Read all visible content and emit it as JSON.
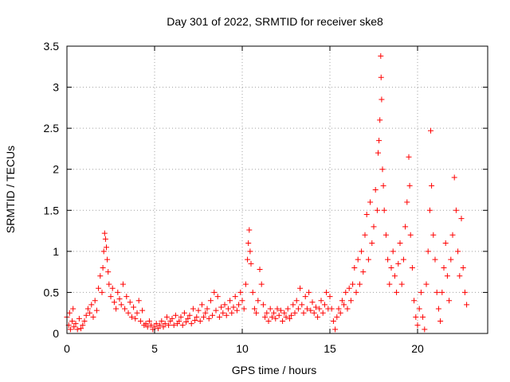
{
  "chart_data": {
    "type": "scatter",
    "title": "Day 301 of 2022, SRMTID for receiver ske8",
    "xlabel": "GPS time / hours",
    "ylabel": "SRMTID / TECUs",
    "xlim": [
      0,
      24
    ],
    "ylim": [
      0,
      3.5
    ],
    "xticks": [
      0,
      5,
      10,
      15,
      20
    ],
    "xtick_labels": [
      "0",
      "5",
      "10",
      "15",
      "20"
    ],
    "yticks": [
      0,
      0.5,
      1,
      1.5,
      2,
      2.5,
      3,
      3.5
    ],
    "ytick_labels": [
      "0",
      "0.5",
      "1",
      "1.5",
      "2",
      "2.5",
      "3",
      "3.5"
    ],
    "grid": true,
    "marker": "+",
    "color": "#ff0000",
    "series": [
      {
        "name": "SRMTID",
        "points": [
          [
            0.0,
            0.2
          ],
          [
            0.1,
            0.1
          ],
          [
            0.15,
            0.25
          ],
          [
            0.2,
            0.05
          ],
          [
            0.3,
            0.15
          ],
          [
            0.35,
            0.3
          ],
          [
            0.4,
            0.08
          ],
          [
            0.5,
            0.12
          ],
          [
            0.6,
            0.05
          ],
          [
            0.7,
            0.18
          ],
          [
            0.8,
            0.06
          ],
          [
            0.9,
            0.1
          ],
          [
            1.0,
            0.15
          ],
          [
            1.1,
            0.22
          ],
          [
            1.2,
            0.3
          ],
          [
            1.3,
            0.25
          ],
          [
            1.4,
            0.35
          ],
          [
            1.5,
            0.2
          ],
          [
            1.6,
            0.4
          ],
          [
            1.7,
            0.28
          ],
          [
            1.8,
            0.55
          ],
          [
            1.9,
            0.7
          ],
          [
            2.0,
            0.5
          ],
          [
            2.05,
            0.8
          ],
          [
            2.1,
            1.0
          ],
          [
            2.15,
            1.22
          ],
          [
            2.2,
            1.15
          ],
          [
            2.25,
            1.05
          ],
          [
            2.3,
            0.9
          ],
          [
            2.35,
            0.75
          ],
          [
            2.4,
            0.6
          ],
          [
            2.5,
            0.45
          ],
          [
            2.6,
            0.55
          ],
          [
            2.7,
            0.38
          ],
          [
            2.8,
            0.3
          ],
          [
            2.9,
            0.5
          ],
          [
            3.0,
            0.42
          ],
          [
            3.1,
            0.35
          ],
          [
            3.2,
            0.6
          ],
          [
            3.3,
            0.3
          ],
          [
            3.4,
            0.45
          ],
          [
            3.5,
            0.25
          ],
          [
            3.6,
            0.38
          ],
          [
            3.7,
            0.2
          ],
          [
            3.8,
            0.32
          ],
          [
            3.9,
            0.18
          ],
          [
            4.0,
            0.25
          ],
          [
            4.1,
            0.4
          ],
          [
            4.2,
            0.15
          ],
          [
            4.3,
            0.28
          ],
          [
            4.4,
            0.1
          ],
          [
            4.5,
            0.12
          ],
          [
            4.6,
            0.08
          ],
          [
            4.7,
            0.15
          ],
          [
            4.8,
            0.1
          ],
          [
            4.9,
            0.05
          ],
          [
            5.0,
            0.08
          ],
          [
            5.1,
            0.12
          ],
          [
            5.2,
            0.06
          ],
          [
            5.3,
            0.1
          ],
          [
            5.4,
            0.15
          ],
          [
            5.5,
            0.08
          ],
          [
            5.6,
            0.12
          ],
          [
            5.7,
            0.2
          ],
          [
            5.8,
            0.1
          ],
          [
            5.9,
            0.15
          ],
          [
            6.0,
            0.18
          ],
          [
            6.1,
            0.1
          ],
          [
            6.2,
            0.22
          ],
          [
            6.3,
            0.12
          ],
          [
            6.4,
            0.15
          ],
          [
            6.5,
            0.2
          ],
          [
            6.6,
            0.1
          ],
          [
            6.7,
            0.25
          ],
          [
            6.8,
            0.14
          ],
          [
            6.9,
            0.18
          ],
          [
            7.0,
            0.22
          ],
          [
            7.1,
            0.12
          ],
          [
            7.2,
            0.3
          ],
          [
            7.3,
            0.16
          ],
          [
            7.4,
            0.2
          ],
          [
            7.5,
            0.28
          ],
          [
            7.6,
            0.15
          ],
          [
            7.7,
            0.35
          ],
          [
            7.8,
            0.2
          ],
          [
            7.9,
            0.25
          ],
          [
            8.0,
            0.3
          ],
          [
            8.1,
            0.18
          ],
          [
            8.2,
            0.4
          ],
          [
            8.3,
            0.22
          ],
          [
            8.4,
            0.5
          ],
          [
            8.5,
            0.28
          ],
          [
            8.6,
            0.45
          ],
          [
            8.7,
            0.2
          ],
          [
            8.8,
            0.32
          ],
          [
            8.9,
            0.25
          ],
          [
            9.0,
            0.35
          ],
          [
            9.1,
            0.22
          ],
          [
            9.2,
            0.3
          ],
          [
            9.3,
            0.4
          ],
          [
            9.4,
            0.25
          ],
          [
            9.5,
            0.32
          ],
          [
            9.6,
            0.45
          ],
          [
            9.7,
            0.28
          ],
          [
            9.8,
            0.35
          ],
          [
            9.9,
            0.5
          ],
          [
            10.0,
            0.4
          ],
          [
            10.1,
            0.3
          ],
          [
            10.2,
            0.6
          ],
          [
            10.3,
            0.9
          ],
          [
            10.35,
            1.1
          ],
          [
            10.4,
            1.26
          ],
          [
            10.45,
            1.0
          ],
          [
            10.5,
            0.85
          ],
          [
            10.6,
            0.5
          ],
          [
            10.7,
            0.3
          ],
          [
            10.8,
            0.25
          ],
          [
            10.9,
            0.4
          ],
          [
            11.0,
            0.78
          ],
          [
            11.1,
            0.6
          ],
          [
            11.2,
            0.35
          ],
          [
            11.3,
            0.2
          ],
          [
            11.4,
            0.25
          ],
          [
            11.5,
            0.15
          ],
          [
            11.6,
            0.3
          ],
          [
            11.7,
            0.2
          ],
          [
            11.8,
            0.25
          ],
          [
            11.9,
            0.18
          ],
          [
            12.0,
            0.3
          ],
          [
            12.1,
            0.22
          ],
          [
            12.2,
            0.28
          ],
          [
            12.3,
            0.15
          ],
          [
            12.4,
            0.25
          ],
          [
            12.5,
            0.2
          ],
          [
            12.6,
            0.3
          ],
          [
            12.7,
            0.18
          ],
          [
            12.8,
            0.22
          ],
          [
            12.9,
            0.35
          ],
          [
            13.0,
            0.25
          ],
          [
            13.1,
            0.4
          ],
          [
            13.2,
            0.3
          ],
          [
            13.3,
            0.55
          ],
          [
            13.4,
            0.35
          ],
          [
            13.5,
            0.25
          ],
          [
            13.6,
            0.45
          ],
          [
            13.7,
            0.3
          ],
          [
            13.8,
            0.5
          ],
          [
            13.9,
            0.28
          ],
          [
            14.0,
            0.38
          ],
          [
            14.1,
            0.25
          ],
          [
            14.2,
            0.32
          ],
          [
            14.3,
            0.2
          ],
          [
            14.4,
            0.3
          ],
          [
            14.5,
            0.4
          ],
          [
            14.6,
            0.25
          ],
          [
            14.7,
            0.35
          ],
          [
            14.8,
            0.5
          ],
          [
            14.9,
            0.3
          ],
          [
            15.0,
            0.45
          ],
          [
            15.1,
            0.3
          ],
          [
            15.2,
            0.15
          ],
          [
            15.3,
            0.05
          ],
          [
            15.4,
            0.2
          ],
          [
            15.5,
            0.3
          ],
          [
            15.6,
            0.25
          ],
          [
            15.7,
            0.4
          ],
          [
            15.8,
            0.35
          ],
          [
            15.9,
            0.5
          ],
          [
            16.0,
            0.3
          ],
          [
            16.1,
            0.55
          ],
          [
            16.2,
            0.4
          ],
          [
            16.3,
            0.6
          ],
          [
            16.4,
            0.8
          ],
          [
            16.5,
            0.5
          ],
          [
            16.6,
            0.9
          ],
          [
            16.7,
            0.6
          ],
          [
            16.8,
            1.0
          ],
          [
            16.9,
            0.75
          ],
          [
            17.0,
            1.2
          ],
          [
            17.1,
            1.45
          ],
          [
            17.2,
            0.9
          ],
          [
            17.3,
            1.6
          ],
          [
            17.4,
            1.1
          ],
          [
            17.5,
            1.3
          ],
          [
            17.6,
            1.75
          ],
          [
            17.7,
            1.5
          ],
          [
            17.75,
            2.2
          ],
          [
            17.8,
            2.35
          ],
          [
            17.85,
            2.6
          ],
          [
            17.9,
            3.38
          ],
          [
            17.92,
            3.12
          ],
          [
            17.95,
            2.85
          ],
          [
            18.0,
            2.0
          ],
          [
            18.05,
            1.8
          ],
          [
            18.1,
            1.5
          ],
          [
            18.2,
            1.2
          ],
          [
            18.3,
            0.9
          ],
          [
            18.4,
            0.6
          ],
          [
            18.5,
            0.8
          ],
          [
            18.6,
            1.0
          ],
          [
            18.7,
            0.7
          ],
          [
            18.8,
            0.5
          ],
          [
            18.9,
            0.85
          ],
          [
            19.0,
            1.1
          ],
          [
            19.1,
            0.6
          ],
          [
            19.2,
            0.9
          ],
          [
            19.3,
            1.3
          ],
          [
            19.4,
            1.6
          ],
          [
            19.5,
            2.15
          ],
          [
            19.55,
            1.8
          ],
          [
            19.6,
            1.2
          ],
          [
            19.7,
            0.8
          ],
          [
            19.8,
            0.4
          ],
          [
            19.9,
            0.2
          ],
          [
            20.0,
            0.1
          ],
          [
            20.1,
            0.3
          ],
          [
            20.2,
            0.5
          ],
          [
            20.3,
            0.2
          ],
          [
            20.4,
            0.05
          ],
          [
            20.5,
            0.6
          ],
          [
            20.6,
            1.0
          ],
          [
            20.7,
            1.5
          ],
          [
            20.75,
            2.47
          ],
          [
            20.8,
            1.8
          ],
          [
            20.9,
            1.2
          ],
          [
            21.0,
            0.9
          ],
          [
            21.1,
            0.5
          ],
          [
            21.2,
            0.3
          ],
          [
            21.3,
            0.15
          ],
          [
            21.4,
            0.5
          ],
          [
            21.5,
            0.8
          ],
          [
            21.6,
            1.1
          ],
          [
            21.7,
            0.7
          ],
          [
            21.8,
            0.4
          ],
          [
            21.9,
            0.9
          ],
          [
            22.0,
            1.2
          ],
          [
            22.1,
            1.9
          ],
          [
            22.2,
            1.5
          ],
          [
            22.3,
            1.0
          ],
          [
            22.4,
            0.7
          ],
          [
            22.5,
            1.4
          ],
          [
            22.6,
            0.8
          ],
          [
            22.7,
            0.5
          ],
          [
            22.8,
            0.35
          ]
        ]
      }
    ]
  }
}
